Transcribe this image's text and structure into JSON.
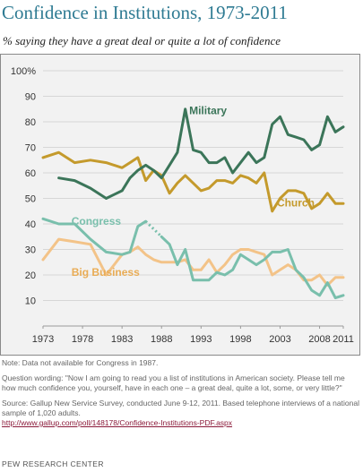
{
  "title": "Confidence in Institutions, 1973-2011",
  "subtitle": "% saying they have a great deal or quite a lot of confidence",
  "notes": {
    "data_note": "Note: Data not available for Congress in 1987.",
    "question": "Question wording: \"Now I am going to read you a list of institutions in American society. Please tell me how much confidence you, yourself, have in each one – a great deal, quite a lot, some, or very little?\"",
    "source": "Source: Gallup New Service Survey, conducted June 9-12, 2011. Based telephone interviews of a national sample of 1,020 adults.",
    "url": "http://www.gallup.com/poll/148178/Confidence-Institutions-PDF.aspx"
  },
  "brand": "PEW RESEARCH CENTER",
  "colors": {
    "military": "#3b7559",
    "church": "#c49a2c",
    "congress": "#79bfac",
    "big_business": "#f3c388",
    "title": "#2f7b93",
    "panel_bg": "#f2f2f2"
  },
  "chart_data": {
    "type": "line",
    "title": "Confidence in Institutions, 1973-2011",
    "subtitle": "% saying they have a great deal or quite a lot of confidence",
    "xlim": [
      1973,
      2011
    ],
    "ylim": [
      0,
      100
    ],
    "x_ticks": [
      "1973",
      "1978",
      "1983",
      "1988",
      "1993",
      "1998",
      "2003",
      "2008",
      "2011"
    ],
    "y_ticks": [
      "10",
      "20",
      "30",
      "40",
      "50",
      "60",
      "70",
      "80",
      "90",
      "100%"
    ],
    "grid": true,
    "series": [
      {
        "name": "Military",
        "color": "#3b7559",
        "points": [
          [
            1975,
            58
          ],
          [
            1977,
            57
          ],
          [
            1979,
            54
          ],
          [
            1981,
            50
          ],
          [
            1983,
            53
          ],
          [
            1984,
            58
          ],
          [
            1985,
            61
          ],
          [
            1986,
            63
          ],
          [
            1987,
            61
          ],
          [
            1988,
            58
          ],
          [
            1989,
            63
          ],
          [
            1990,
            68
          ],
          [
            1991,
            85
          ],
          [
            1992,
            69
          ],
          [
            1993,
            68
          ],
          [
            1994,
            64
          ],
          [
            1995,
            64
          ],
          [
            1996,
            66
          ],
          [
            1997,
            60
          ],
          [
            1998,
            64
          ],
          [
            1999,
            68
          ],
          [
            2000,
            64
          ],
          [
            2001,
            66
          ],
          [
            2002,
            79
          ],
          [
            2003,
            82
          ],
          [
            2004,
            75
          ],
          [
            2005,
            74
          ],
          [
            2006,
            73
          ],
          [
            2007,
            69
          ],
          [
            2008,
            71
          ],
          [
            2009,
            82
          ],
          [
            2010,
            76
          ],
          [
            2011,
            78
          ]
        ]
      },
      {
        "name": "Church",
        "color": "#c49a2c",
        "points": [
          [
            1973,
            66
          ],
          [
            1975,
            68
          ],
          [
            1977,
            64
          ],
          [
            1979,
            65
          ],
          [
            1981,
            64
          ],
          [
            1983,
            62
          ],
          [
            1984,
            64
          ],
          [
            1985,
            66
          ],
          [
            1986,
            57
          ],
          [
            1987,
            61
          ],
          [
            1988,
            59
          ],
          [
            1989,
            52
          ],
          [
            1990,
            56
          ],
          [
            1991,
            59
          ],
          [
            1992,
            56
          ],
          [
            1993,
            53
          ],
          [
            1994,
            54
          ],
          [
            1995,
            57
          ],
          [
            1996,
            57
          ],
          [
            1997,
            56
          ],
          [
            1998,
            59
          ],
          [
            1999,
            58
          ],
          [
            2000,
            56
          ],
          [
            2001,
            60
          ],
          [
            2002,
            45
          ],
          [
            2003,
            50
          ],
          [
            2004,
            53
          ],
          [
            2005,
            53
          ],
          [
            2006,
            52
          ],
          [
            2007,
            46
          ],
          [
            2008,
            48
          ],
          [
            2009,
            52
          ],
          [
            2010,
            48
          ],
          [
            2011,
            48
          ]
        ]
      },
      {
        "name": "Congress",
        "color": "#79bfac",
        "points": [
          [
            1973,
            42
          ],
          [
            1975,
            40
          ],
          [
            1977,
            40
          ],
          [
            1979,
            34
          ],
          [
            1981,
            29
          ],
          [
            1983,
            28
          ],
          [
            1984,
            29
          ],
          [
            1985,
            39
          ],
          [
            1986,
            41
          ],
          [
            1987,
            null
          ],
          [
            1988,
            35
          ],
          [
            1989,
            32
          ],
          [
            1990,
            24
          ],
          [
            1991,
            30
          ],
          [
            1992,
            18
          ],
          [
            1993,
            18
          ],
          [
            1994,
            18
          ],
          [
            1995,
            21
          ],
          [
            1996,
            20
          ],
          [
            1997,
            22
          ],
          [
            1998,
            28
          ],
          [
            1999,
            26
          ],
          [
            2000,
            24
          ],
          [
            2001,
            26
          ],
          [
            2002,
            29
          ],
          [
            2003,
            29
          ],
          [
            2004,
            30
          ],
          [
            2005,
            22
          ],
          [
            2006,
            19
          ],
          [
            2007,
            14
          ],
          [
            2008,
            12
          ],
          [
            2009,
            17
          ],
          [
            2010,
            11
          ],
          [
            2011,
            12
          ]
        ]
      },
      {
        "name": "Big Business",
        "color": "#f3c388",
        "points": [
          [
            1973,
            26
          ],
          [
            1975,
            34
          ],
          [
            1977,
            33
          ],
          [
            1979,
            32
          ],
          [
            1981,
            20
          ],
          [
            1983,
            28
          ],
          [
            1984,
            29
          ],
          [
            1985,
            31
          ],
          [
            1986,
            28
          ],
          [
            1987,
            26
          ],
          [
            1988,
            25
          ],
          [
            1989,
            25
          ],
          [
            1990,
            25
          ],
          [
            1991,
            26
          ],
          [
            1992,
            22
          ],
          [
            1993,
            22
          ],
          [
            1994,
            26
          ],
          [
            1995,
            21
          ],
          [
            1996,
            24
          ],
          [
            1997,
            28
          ],
          [
            1998,
            30
          ],
          [
            1999,
            30
          ],
          [
            2000,
            29
          ],
          [
            2001,
            28
          ],
          [
            2002,
            20
          ],
          [
            2003,
            22
          ],
          [
            2004,
            24
          ],
          [
            2005,
            22
          ],
          [
            2006,
            18
          ],
          [
            2007,
            18
          ],
          [
            2008,
            20
          ],
          [
            2009,
            16
          ],
          [
            2010,
            19
          ],
          [
            2011,
            19
          ]
        ]
      }
    ]
  }
}
